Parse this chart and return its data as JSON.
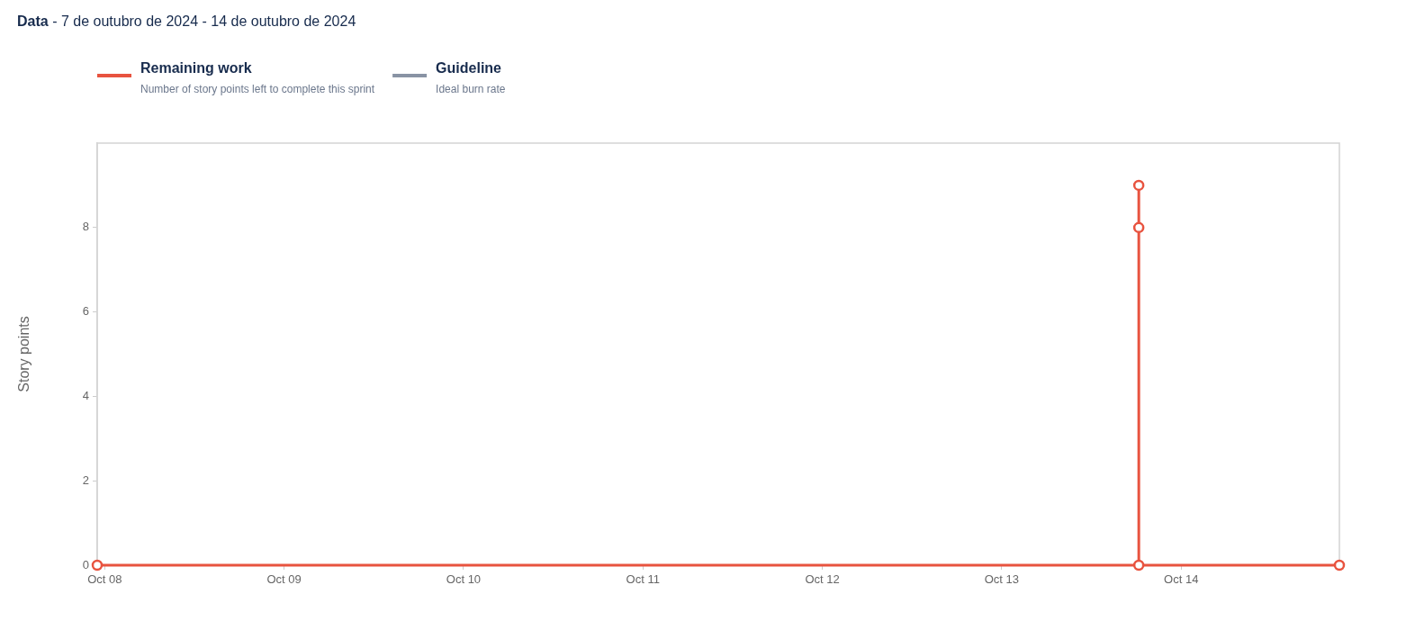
{
  "chart_data": {
    "type": "step",
    "title": "Data",
    "subtitle": "- 7 de outubro de 2024 - 14 de outubro de 2024",
    "ylabel": "Story points",
    "x": [
      "2024-10-07T23:00",
      "2024-10-13T18:20",
      "2024-10-13T18:20",
      "2024-10-13T18:20",
      "2024-10-14T21:10"
    ],
    "series": [
      {
        "name": "Remaining work",
        "color": "#e8533f",
        "values": [
          0,
          9,
          8,
          0,
          0
        ]
      },
      {
        "name": "Guideline",
        "color": "#8993a4",
        "values": [
          null,
          null,
          null,
          null,
          null
        ]
      }
    ],
    "xlim": [
      "2024-10-07T23:00",
      "2024-10-14T21:10"
    ],
    "xticks": [
      {
        "value": "2024-10-08",
        "label": "Oct 08"
      },
      {
        "value": "2024-10-09",
        "label": "Oct 09"
      },
      {
        "value": "2024-10-10",
        "label": "Oct 10"
      },
      {
        "value": "2024-10-11",
        "label": "Oct 11"
      },
      {
        "value": "2024-10-12",
        "label": "Oct 12"
      },
      {
        "value": "2024-10-13",
        "label": "Oct 13"
      },
      {
        "value": "2024-10-14",
        "label": "Oct 14"
      }
    ],
    "ylim": [
      0,
      10
    ],
    "yticks": [
      0,
      2,
      4,
      6,
      8
    ],
    "marker": "circle",
    "legend": "top left",
    "annotations": [
      "Number of story points left to complete this sprint",
      "Ideal burn rate"
    ]
  }
}
